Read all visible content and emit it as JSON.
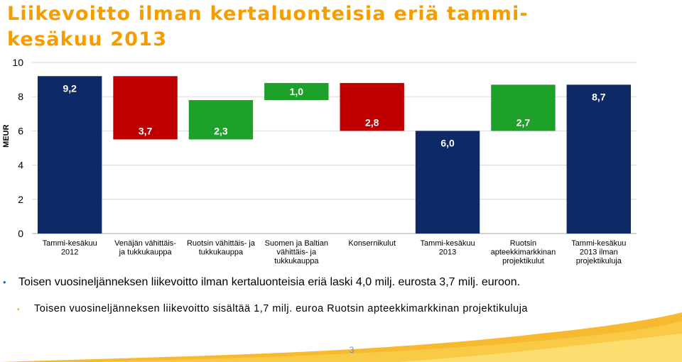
{
  "slide": {
    "title": "Liikevoitto ilman kertaluonteisia eriä tammi-kesäkuu 2013",
    "bullets": [
      "Toisen vuosineljänneksen liikevoitto ilman kertaluonteisia eriä laski 4,0 milj. eurosta 3,7 milj. euroon.",
      "Toisen vuosineljänneksen liikevoitto sisältää 1,7 milj. euroa Ruotsin apteekkimarkkinan projektikuluja"
    ],
    "page_number": "3",
    "colors": {
      "title": "#f59d00",
      "bullet1": "#1c6fb5",
      "bullet2": "#f5a300"
    }
  },
  "chart_data": {
    "type": "bar",
    "subtype": "waterfall",
    "ylabel": "MEUR",
    "ylim": [
      0,
      10
    ],
    "yticks": [
      "0",
      "2",
      "4",
      "6",
      "8",
      "10"
    ],
    "grid": true,
    "categories": [
      [
        "Tammi-kesäkuu",
        "2012"
      ],
      [
        "Venäjän vähittäis-",
        "ja tukkukauppa"
      ],
      [
        "Ruotsin vähittäis- ja",
        "tukkukauppa"
      ],
      [
        "Suomen ja Baltian",
        "vähittäis- ja",
        "tukkukauppa"
      ],
      [
        "Konsernikulut"
      ],
      [
        "Tammi-kesäkuu",
        "2013"
      ],
      [
        "Ruotsin",
        "apteekkimarkkinan",
        "projektikulut"
      ],
      [
        "Tammi-kesäkuu",
        "2013 ilman",
        "projektikuluja"
      ]
    ],
    "bars": [
      {
        "kind": "total",
        "base": 0,
        "top": 9.2,
        "label": "9,2"
      },
      {
        "kind": "decrease",
        "base": 5.5,
        "top": 9.2,
        "label": "3,7"
      },
      {
        "kind": "increase",
        "base": 5.5,
        "top": 7.8,
        "label": "2,3"
      },
      {
        "kind": "increase",
        "base": 7.8,
        "top": 8.8,
        "label": "1,0"
      },
      {
        "kind": "decrease",
        "base": 6.0,
        "top": 8.8,
        "label": "2,8"
      },
      {
        "kind": "total",
        "base": 0,
        "top": 6.0,
        "label": "6,0"
      },
      {
        "kind": "increase",
        "base": 6.0,
        "top": 8.7,
        "label": "2,7"
      },
      {
        "kind": "total",
        "base": 0,
        "top": 8.7,
        "label": "8,7"
      }
    ],
    "colors": {
      "total": "#0d2a66",
      "decrease": "#c00000",
      "increase": "#1ea12a"
    }
  }
}
